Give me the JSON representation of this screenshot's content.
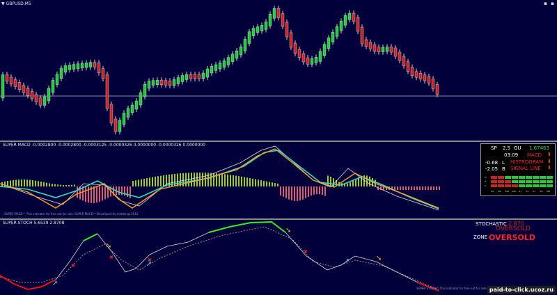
{
  "chart1": {
    "symbol": "GBPUSD,M5",
    "icons": {
      "dropdown": "triangle-down-icon",
      "window": "window-control-icons"
    }
  },
  "chart2": {
    "header": "SUPER MACD -0.0002800 -0.0002800 -0.0003125 -0.0000326 0.0000000 -0.0000326 0.0000000",
    "footer": "SUPER MACD™ This indicator for free not for sale. SUPER MACD™ Developed by mladen@ 2012"
  },
  "chart3": {
    "header": "SUPER STOCH 5.6539 2.8708",
    "footer": "SUPER STOCH™ This indicator for free not for sale. SUPER"
  },
  "dashboard": {
    "sp_label": "SP",
    "sp_value": "2.5",
    "pair": "GU",
    "price": "1.67463",
    "time": "03:09",
    "l_value": "-0.68",
    "l_label": "L",
    "b_value": "-2.05",
    "b_label": "B",
    "macd": "MACD",
    "histogram": "HISTROGRAM",
    "signal": "SIGNAL LINE",
    "timeframes": [
      "M1",
      "M5",
      "M15",
      "M30",
      "H1",
      "H4",
      "D1",
      "W1",
      "MN"
    ],
    "row_labels": [
      "M",
      "H",
      "S"
    ]
  },
  "stochastic_panel": {
    "label": "STOCHASTIC",
    "value": "2.870",
    "state": "OVERSOLD",
    "zone_label": "ZONE",
    "zone_state": "OVERSOLD"
  },
  "watermark": "paid-to-click.ucoz.ru",
  "colors": {
    "background": "#00003a",
    "bull": "#22cc33",
    "bear": "#cc2222",
    "macd_line": "#ffa020",
    "signal_line": "#2ee0c0",
    "hist_up": "#9acd32",
    "hist_down": "#e05a70"
  }
}
